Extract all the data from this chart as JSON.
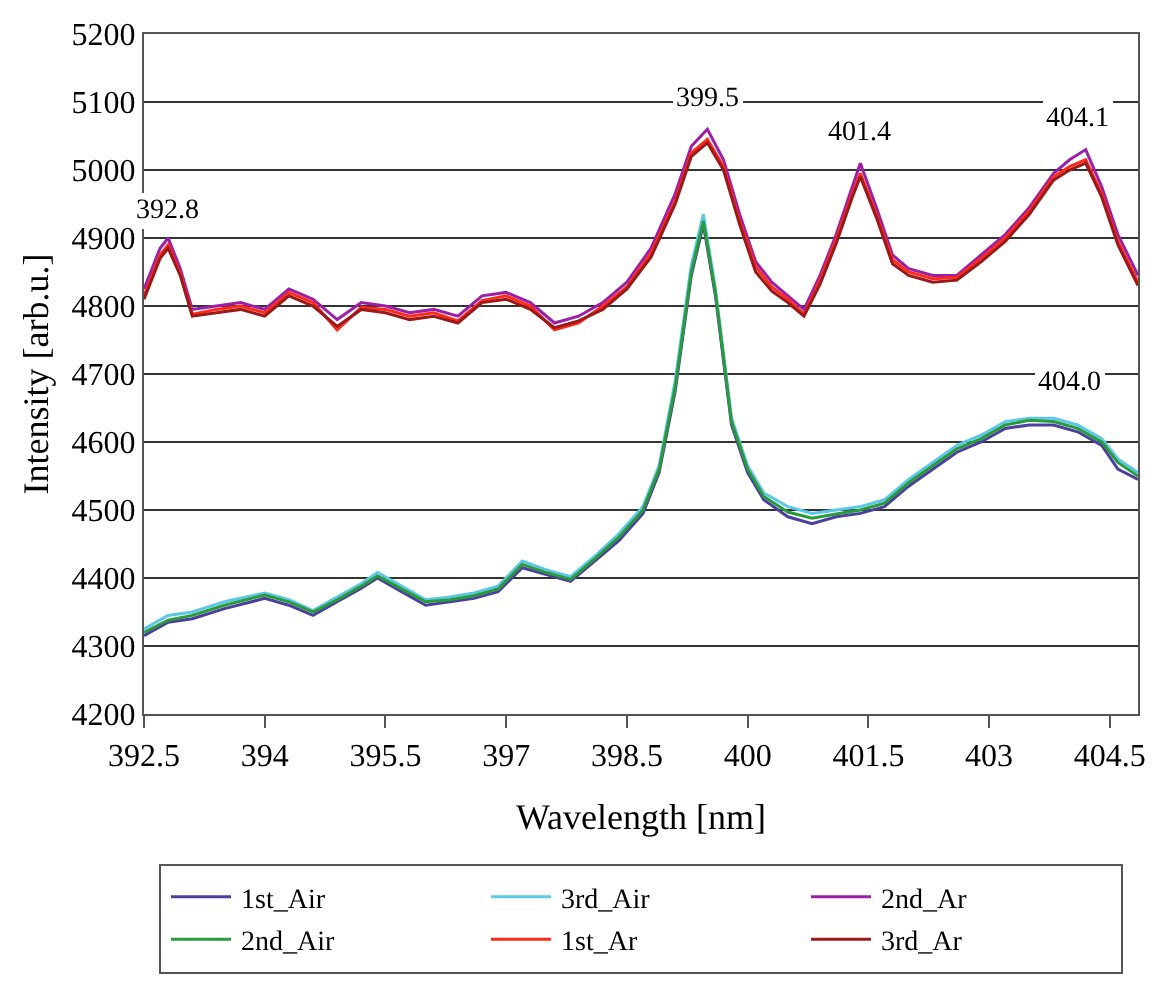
{
  "chart_data": {
    "type": "line",
    "xlabel": "Wavelength [nm]",
    "ylabel": "Intensity [arb.u.]",
    "xlim": [
      392.5,
      404.85
    ],
    "xticks": [
      392.5,
      394,
      395.5,
      397,
      398.5,
      400,
      401.5,
      403,
      404.5
    ],
    "ylim": [
      4200,
      5200
    ],
    "yticks": [
      4200,
      4300,
      4400,
      4500,
      4600,
      4700,
      4800,
      4900,
      5000,
      5100,
      5200
    ],
    "grid": "y",
    "legend": "bottom",
    "marker": "none",
    "line_style": "solid",
    "annotations": [
      {
        "text": "392.8",
        "x": 392.8,
        "y": 4895
      },
      {
        "text": "399.5",
        "x": 399.5,
        "y": 5060
      },
      {
        "text": "401.4",
        "x": 401.4,
        "y": 5010
      },
      {
        "text": "404.1",
        "x": 404.1,
        "y": 5030
      },
      {
        "text": "404.0",
        "x": 404.0,
        "y": 4640
      }
    ],
    "series": [
      {
        "name": "1st_Air",
        "color": "#4b3fa0",
        "x": [
          392.5,
          392.8,
          393.1,
          393.5,
          394.0,
          394.3,
          394.6,
          394.9,
          395.2,
          395.4,
          395.7,
          396.0,
          396.3,
          396.6,
          396.9,
          397.2,
          397.5,
          397.8,
          398.1,
          398.4,
          398.7,
          398.9,
          399.1,
          399.3,
          399.45,
          399.6,
          399.8,
          400.0,
          400.2,
          400.5,
          400.8,
          401.1,
          401.4,
          401.7,
          402.0,
          402.3,
          402.6,
          402.9,
          403.2,
          403.5,
          403.8,
          404.1,
          404.4,
          404.6,
          404.85
        ],
        "values": [
          4315,
          4335,
          4340,
          4355,
          4370,
          4360,
          4345,
          4365,
          4385,
          4400,
          4380,
          4360,
          4365,
          4370,
          4380,
          4415,
          4405,
          4395,
          4425,
          4455,
          4495,
          4555,
          4675,
          4845,
          4920,
          4815,
          4625,
          4555,
          4515,
          4490,
          4480,
          4490,
          4495,
          4505,
          4535,
          4560,
          4585,
          4600,
          4620,
          4625,
          4625,
          4615,
          4595,
          4560,
          4545
        ]
      },
      {
        "name": "3rd_Air",
        "color": "#5bc8e8",
        "x": [
          392.5,
          392.8,
          393.1,
          393.5,
          394.0,
          394.3,
          394.6,
          394.9,
          395.2,
          395.4,
          395.7,
          396.0,
          396.3,
          396.6,
          396.9,
          397.2,
          397.5,
          397.8,
          398.1,
          398.4,
          398.7,
          398.9,
          399.1,
          399.3,
          399.45,
          399.6,
          399.8,
          400.0,
          400.2,
          400.5,
          400.8,
          401.1,
          401.4,
          401.7,
          402.0,
          402.3,
          402.6,
          402.9,
          403.2,
          403.5,
          403.8,
          404.1,
          404.4,
          404.6,
          404.85
        ],
        "values": [
          4325,
          4345,
          4350,
          4365,
          4378,
          4368,
          4352,
          4372,
          4392,
          4408,
          4388,
          4368,
          4372,
          4378,
          4388,
          4425,
          4412,
          4402,
          4432,
          4465,
          4505,
          4565,
          4690,
          4860,
          4935,
          4825,
          4635,
          4565,
          4525,
          4505,
          4495,
          4500,
          4505,
          4515,
          4545,
          4570,
          4595,
          4610,
          4630,
          4635,
          4635,
          4625,
          4605,
          4575,
          4555
        ]
      },
      {
        "name": "2nd_Ar",
        "color": "#9b1fa8",
        "x": [
          392.5,
          392.7,
          392.8,
          392.95,
          393.1,
          393.4,
          393.7,
          394.0,
          394.3,
          394.6,
          394.9,
          395.2,
          395.5,
          395.8,
          396.1,
          396.4,
          396.7,
          397.0,
          397.3,
          397.6,
          397.9,
          398.2,
          398.5,
          398.8,
          399.1,
          399.3,
          399.5,
          399.7,
          399.9,
          400.1,
          400.3,
          400.5,
          400.7,
          400.9,
          401.1,
          401.3,
          401.4,
          401.6,
          401.8,
          402.0,
          402.3,
          402.6,
          402.9,
          403.2,
          403.5,
          403.8,
          404.0,
          404.2,
          404.4,
          404.6,
          404.85
        ],
        "values": [
          4825,
          4885,
          4900,
          4855,
          4795,
          4800,
          4805,
          4795,
          4825,
          4810,
          4780,
          4805,
          4800,
          4790,
          4795,
          4785,
          4815,
          4820,
          4805,
          4775,
          4785,
          4805,
          4835,
          4885,
          4965,
          5035,
          5060,
          5015,
          4935,
          4865,
          4835,
          4815,
          4795,
          4845,
          4905,
          4975,
          5010,
          4945,
          4875,
          4855,
          4845,
          4845,
          4875,
          4905,
          4945,
          4995,
          5015,
          5030,
          4975,
          4905,
          4845
        ]
      },
      {
        "name": "2nd_Air",
        "color": "#2a9a3a",
        "x": [
          392.5,
          392.8,
          393.1,
          393.5,
          394.0,
          394.3,
          394.6,
          394.9,
          395.2,
          395.4,
          395.7,
          396.0,
          396.3,
          396.6,
          396.9,
          397.2,
          397.5,
          397.8,
          398.1,
          398.4,
          398.7,
          398.9,
          399.1,
          399.3,
          399.45,
          399.6,
          399.8,
          400.0,
          400.2,
          400.5,
          400.8,
          401.1,
          401.4,
          401.7,
          402.0,
          402.3,
          402.6,
          402.9,
          403.2,
          403.5,
          403.8,
          404.1,
          404.4,
          404.6,
          404.85
        ],
        "values": [
          4320,
          4338,
          4345,
          4360,
          4375,
          4365,
          4350,
          4368,
          4388,
          4403,
          4384,
          4365,
          4368,
          4374,
          4384,
          4420,
          4408,
          4398,
          4428,
          4460,
          4500,
          4560,
          4680,
          4850,
          4925,
          4820,
          4630,
          4560,
          4520,
          4497,
          4488,
          4494,
          4500,
          4510,
          4540,
          4565,
          4590,
          4605,
          4625,
          4632,
          4630,
          4620,
          4600,
          4570,
          4550
        ]
      },
      {
        "name": "1st_Ar",
        "color": "#ff2a1a",
        "x": [
          392.5,
          392.7,
          392.8,
          392.95,
          393.1,
          393.4,
          393.7,
          394.0,
          394.3,
          394.6,
          394.9,
          395.2,
          395.5,
          395.8,
          396.1,
          396.4,
          396.7,
          397.0,
          397.3,
          397.6,
          397.9,
          398.2,
          398.5,
          398.8,
          399.1,
          399.3,
          399.5,
          399.7,
          399.9,
          400.1,
          400.3,
          400.5,
          400.7,
          400.9,
          401.1,
          401.3,
          401.4,
          401.6,
          401.8,
          402.0,
          402.3,
          402.6,
          402.9,
          403.2,
          403.5,
          403.8,
          404.0,
          404.2,
          404.4,
          404.6,
          404.85
        ],
        "values": [
          4815,
          4875,
          4890,
          4848,
          4788,
          4795,
          4800,
          4790,
          4820,
          4805,
          4765,
          4798,
          4795,
          4785,
          4790,
          4778,
          4808,
          4815,
          4800,
          4765,
          4775,
          4800,
          4828,
          4878,
          4955,
          5025,
          5045,
          5005,
          4925,
          4858,
          4828,
          4810,
          4788,
          4838,
          4898,
          4965,
          4995,
          4935,
          4868,
          4850,
          4840,
          4842,
          4870,
          4900,
          4940,
          4990,
          5005,
          5015,
          4965,
          4895,
          4835
        ]
      },
      {
        "name": "3rd_Ar",
        "color": "#9a1a1a",
        "x": [
          392.5,
          392.7,
          392.8,
          392.95,
          393.1,
          393.4,
          393.7,
          394.0,
          394.3,
          394.6,
          394.9,
          395.2,
          395.5,
          395.8,
          396.1,
          396.4,
          396.7,
          397.0,
          397.3,
          397.6,
          397.9,
          398.2,
          398.5,
          398.8,
          399.1,
          399.3,
          399.5,
          399.7,
          399.9,
          400.1,
          400.3,
          400.5,
          400.7,
          400.9,
          401.1,
          401.3,
          401.4,
          401.6,
          401.8,
          402.0,
          402.3,
          402.6,
          402.9,
          403.2,
          403.5,
          403.8,
          404.0,
          404.2,
          404.4,
          404.6,
          404.85
        ],
        "values": [
          4810,
          4870,
          4885,
          4845,
          4785,
          4790,
          4795,
          4785,
          4815,
          4800,
          4770,
          4795,
          4790,
          4780,
          4785,
          4775,
          4805,
          4810,
          4795,
          4768,
          4778,
          4795,
          4825,
          4872,
          4950,
          5020,
          5040,
          5000,
          4920,
          4850,
          4822,
          4805,
          4785,
          4832,
          4892,
          4960,
          4990,
          4930,
          4862,
          4845,
          4835,
          4838,
          4865,
          4895,
          4935,
          4985,
          5000,
          5010,
          4960,
          4890,
          4830
        ]
      }
    ]
  }
}
